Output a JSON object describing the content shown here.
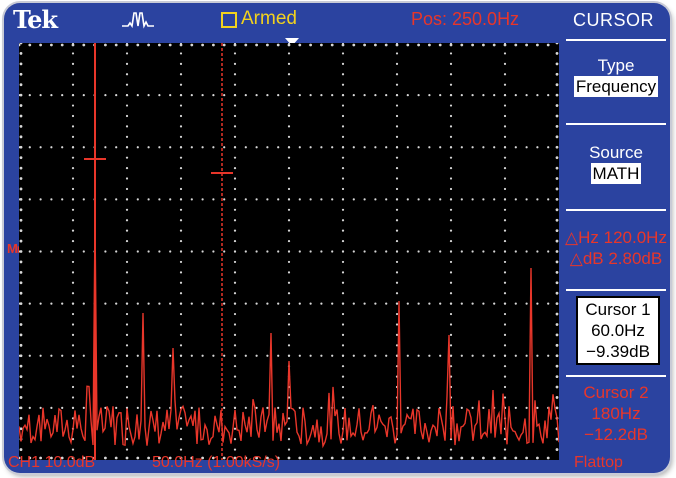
{
  "header": {
    "brand": "Tek",
    "acquisition_icon": "peak-detect-waveform-icon",
    "trigger_status": "Armed",
    "position_readout": "Pos: 250.0Hz"
  },
  "menu": {
    "title": "CURSOR",
    "type_label": "Type",
    "type_value": "Frequency",
    "source_label": "Source",
    "source_value": "MATH",
    "delta_hz": "△Hz 120.0Hz",
    "delta_db": "△dB 2.80dB",
    "cursor1": {
      "label": "Cursor 1",
      "freq": "60.0Hz",
      "db": "−9.39dB"
    },
    "cursor2": {
      "label": "Cursor 2",
      "freq": "180Hz",
      "db": "−12.2dB"
    }
  },
  "footer": {
    "channel_scale": "CH1 10.0dB",
    "timebase": "50.0Hz (1.00kS/s)",
    "window": "Flattop"
  },
  "colors": {
    "bezel": "#2b43a0",
    "trace": "#e8362a",
    "status": "#f2d21e",
    "screen": "#000000"
  }
}
